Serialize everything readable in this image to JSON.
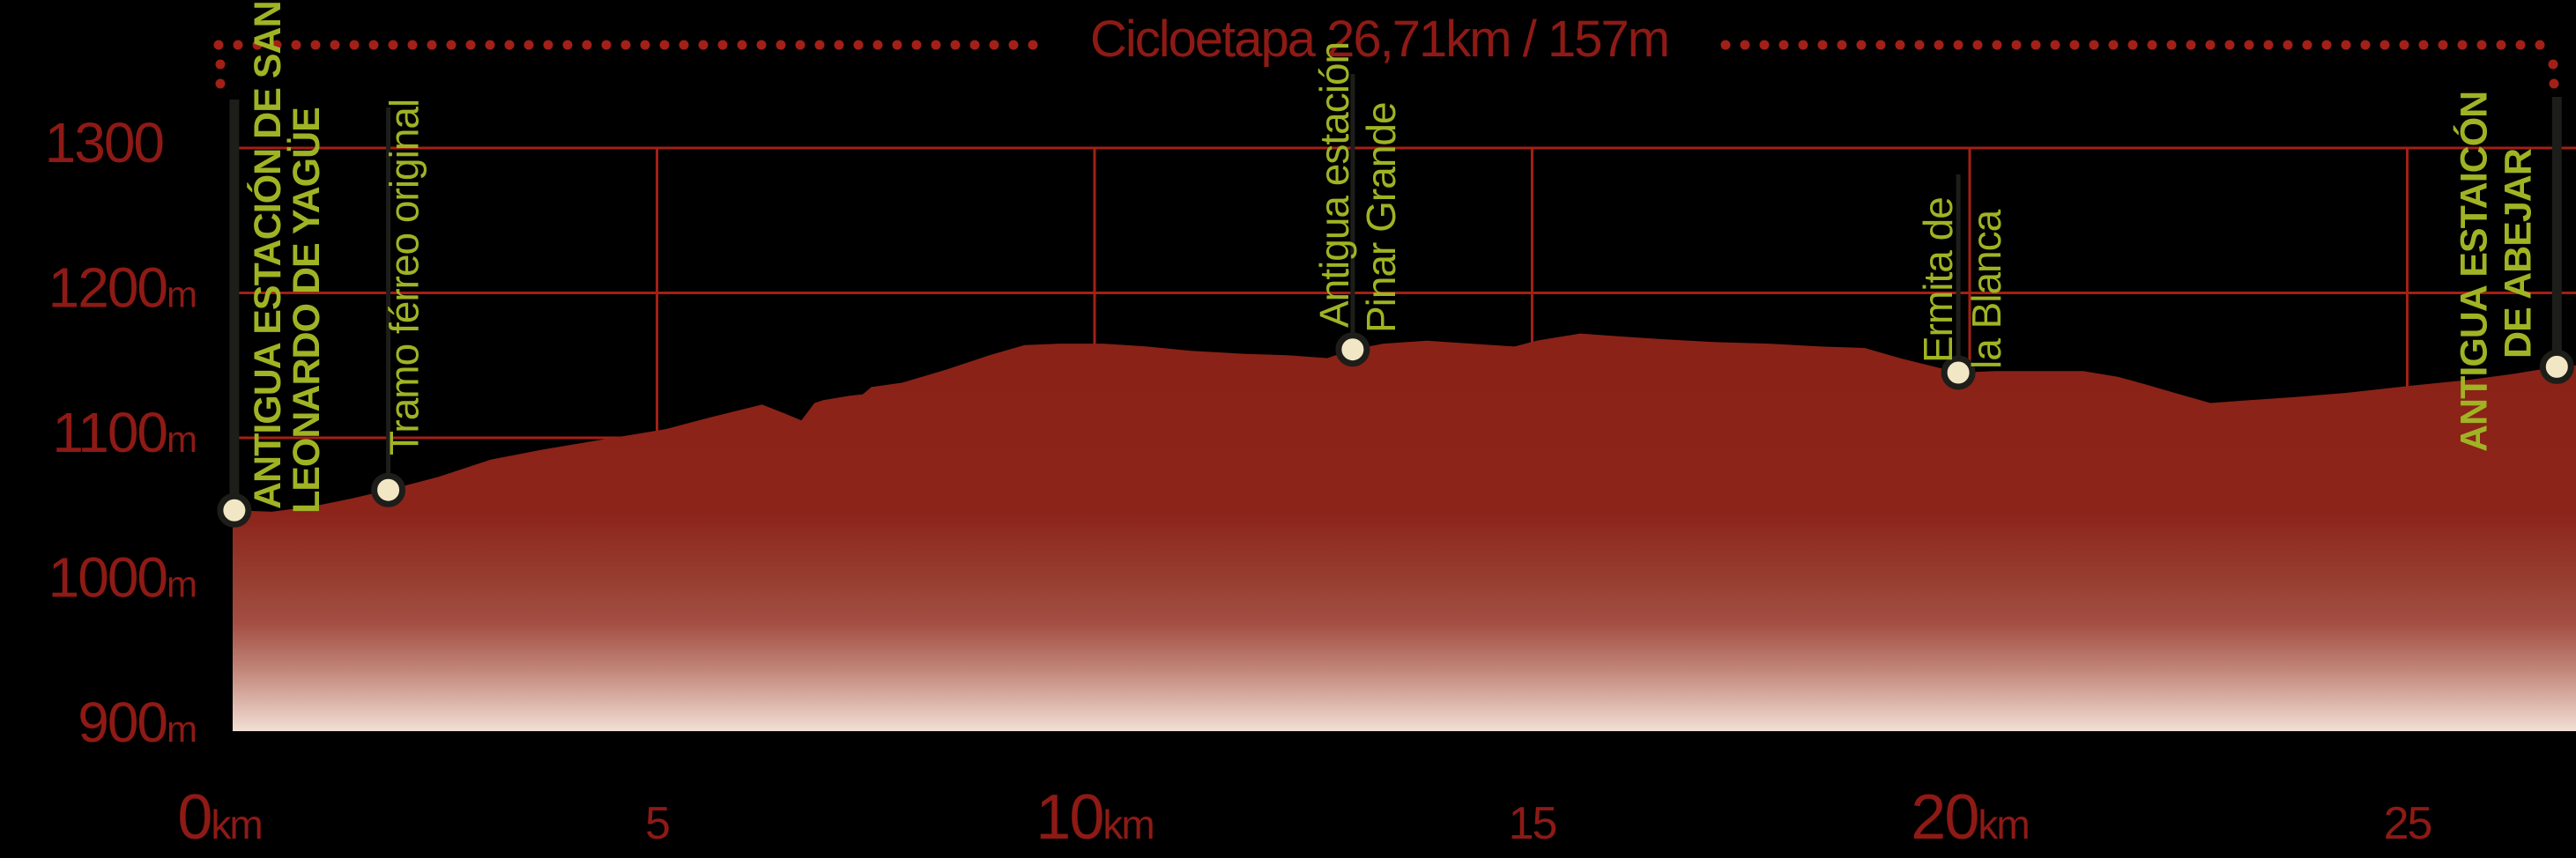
{
  "title": "Cicloetapa  26,71km / 157m",
  "colors": {
    "background": "#000000",
    "accent_red": "#8e1a15",
    "grid_red": "#a32015",
    "dotted_red": "#a22017",
    "profile_dark": "#8a2217",
    "profile_fade": "#f2dfd6",
    "label_green": "#a0b324",
    "marker_black": "#1d1d1a",
    "dot_cream": "#f2e7c5"
  },
  "y_axis": {
    "unit": "m",
    "ticks": [
      {
        "label": "1300",
        "suffix": "",
        "m": 1300
      },
      {
        "label": "1200",
        "suffix": "m",
        "m": 1200
      },
      {
        "label": "1100",
        "suffix": "m",
        "m": 1100
      },
      {
        "label": "1000",
        "suffix": "m",
        "m": 1000
      },
      {
        "label": "900",
        "suffix": "m",
        "m": 900
      }
    ]
  },
  "x_axis": {
    "unit": "km",
    "ticks": [
      {
        "label": "0",
        "suffix": "km",
        "km": 0,
        "size": "major"
      },
      {
        "label": "5",
        "suffix": "",
        "km": 5,
        "size": "minor"
      },
      {
        "label": "10",
        "suffix": "km",
        "km": 10,
        "size": "major"
      },
      {
        "label": "15",
        "suffix": "",
        "km": 15,
        "size": "minor"
      },
      {
        "label": "20",
        "suffix": "km",
        "km": 20,
        "size": "major"
      },
      {
        "label": "25",
        "suffix": "",
        "km": 25,
        "size": "minor"
      }
    ]
  },
  "chart_data": {
    "type": "area",
    "title": "Cicloetapa  26,71km / 157m",
    "total_distance_km": 26.71,
    "total_ascent_m": 157,
    "x_unit": "km",
    "y_unit": "m",
    "x_range": [
      0,
      26.71
    ],
    "y_axis_ticks": [
      1300,
      1200,
      1100,
      1000,
      900
    ],
    "x_axis_ticks": [
      0,
      5,
      10,
      15,
      20,
      25
    ],
    "grid": true,
    "profile": [
      [
        0.17,
        1050
      ],
      [
        0.6,
        1049
      ],
      [
        1.1,
        1053
      ],
      [
        1.5,
        1058
      ],
      [
        1.93,
        1064
      ],
      [
        2.5,
        1073
      ],
      [
        3.1,
        1085
      ],
      [
        3.7,
        1092
      ],
      [
        4.3,
        1098
      ],
      [
        4.8,
        1103
      ],
      [
        5.1,
        1106
      ],
      [
        5.6,
        1114
      ],
      [
        6.2,
        1123
      ],
      [
        6.45,
        1117
      ],
      [
        6.65,
        1112
      ],
      [
        6.8,
        1124
      ],
      [
        6.9,
        1126
      ],
      [
        7.2,
        1129
      ],
      [
        7.35,
        1130
      ],
      [
        7.45,
        1135
      ],
      [
        7.8,
        1138
      ],
      [
        8.3,
        1147
      ],
      [
        8.8,
        1157
      ],
      [
        9.2,
        1164
      ],
      [
        9.6,
        1165
      ],
      [
        10.1,
        1165
      ],
      [
        10.6,
        1163
      ],
      [
        11.1,
        1160
      ],
      [
        11.7,
        1158
      ],
      [
        12.2,
        1157
      ],
      [
        12.66,
        1155
      ],
      [
        12.95,
        1161
      ],
      [
        13.3,
        1165
      ],
      [
        13.8,
        1167
      ],
      [
        14.3,
        1165
      ],
      [
        14.8,
        1163
      ],
      [
        15.05,
        1167
      ],
      [
        15.55,
        1172
      ],
      [
        16.0,
        1170
      ],
      [
        16.5,
        1168
      ],
      [
        17.1,
        1166
      ],
      [
        17.7,
        1165
      ],
      [
        18.3,
        1163
      ],
      [
        18.8,
        1162
      ],
      [
        19.2,
        1155
      ],
      [
        19.6,
        1149
      ],
      [
        19.87,
        1145
      ],
      [
        20.3,
        1146
      ],
      [
        20.9,
        1146
      ],
      [
        21.3,
        1146
      ],
      [
        21.7,
        1142
      ],
      [
        22.0,
        1137
      ],
      [
        22.4,
        1130
      ],
      [
        22.75,
        1124
      ],
      [
        23.2,
        1126
      ],
      [
        23.7,
        1128
      ],
      [
        24.3,
        1131
      ],
      [
        25.05,
        1136
      ],
      [
        25.7,
        1140
      ],
      [
        26.2,
        1144
      ],
      [
        26.71,
        1149
      ],
      [
        26.94,
        1150
      ]
    ],
    "waypoints": [
      {
        "label_lines": [
          "ANTIGUA ESTACIÓN DE SAN",
          "LEONARDO DE YAGÜE"
        ],
        "km": 0.17,
        "elevation_m": 1050,
        "type": "station"
      },
      {
        "label_lines": [
          "Tramo férreo original"
        ],
        "km": 1.93,
        "elevation_m": 1064,
        "type": "poi"
      },
      {
        "label_lines": [
          "Antigua estación",
          "Pinar Grande"
        ],
        "km": 12.95,
        "elevation_m": 1161,
        "type": "poi"
      },
      {
        "label_lines": [
          "Ermita de",
          "la Blanca"
        ],
        "km": 19.87,
        "elevation_m": 1145,
        "type": "poi"
      },
      {
        "label_lines": [
          "ANTIGUA ESTAICÓN",
          "DE ABEJAR"
        ],
        "km": 26.71,
        "elevation_m": 1149,
        "type": "station"
      }
    ]
  }
}
